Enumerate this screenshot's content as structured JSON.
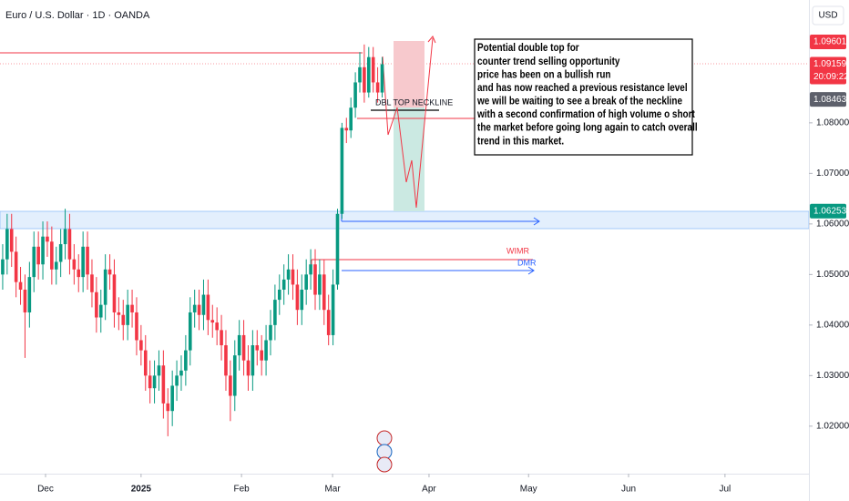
{
  "chart_data": {
    "type": "candlestick",
    "title": "Euro / U.S. Dollar · 1D · OANDA",
    "currency": "USD",
    "up_color": "#089981",
    "down_color": "#f23645",
    "open": [
      1.05,
      1.053,
      1.059,
      1.0545,
      1.0485,
      1.047,
      1.0425,
      1.0495,
      1.0555,
      1.052,
      1.0575,
      1.0565,
      1.051,
      1.0525,
      1.056,
      1.059,
      1.053,
      1.051,
      1.0495,
      1.0555,
      1.05,
      1.0465,
      1.0415,
      1.044,
      1.051,
      1.05,
      1.0425,
      1.042,
      1.04,
      1.044,
      1.0425,
      1.037,
      1.035,
      1.03,
      1.0275,
      1.03,
      1.032,
      1.0245,
      1.023,
      1.028,
      1.03,
      1.031,
      1.035,
      1.0425,
      1.044,
      1.042,
      1.046,
      1.041,
      1.0405,
      1.039,
      1.036,
      1.03,
      1.026,
      1.034,
      1.038,
      1.033,
      1.03,
      1.036,
      1.035,
      1.033,
      1.037,
      1.04,
      1.045,
      1.047,
      1.049,
      1.051,
      1.048,
      1.043,
      1.047,
      1.05,
      1.052,
      1.046,
      1.05,
      1.043,
      1.038,
      1.048,
      1.062,
      1.079,
      1.0785,
      1.083,
      1.088,
      1.091,
      1.086,
      1.093,
      1.088,
      1.086
    ],
    "high": [
      1.056,
      1.062,
      1.062,
      1.0575,
      1.0515,
      1.05,
      1.0525,
      1.0585,
      1.0585,
      1.0605,
      1.0605,
      1.0595,
      1.0555,
      1.059,
      1.063,
      1.062,
      1.056,
      1.054,
      1.0585,
      1.0585,
      1.053,
      1.0495,
      1.047,
      1.054,
      1.054,
      1.053,
      1.0455,
      1.045,
      1.047,
      1.047,
      1.0455,
      1.04,
      1.038,
      1.033,
      1.033,
      1.035,
      1.035,
      1.0275,
      1.031,
      1.033,
      1.034,
      1.038,
      1.0455,
      1.047,
      1.047,
      1.049,
      1.049,
      1.044,
      1.0435,
      1.042,
      1.039,
      1.033,
      1.037,
      1.041,
      1.041,
      1.036,
      1.039,
      1.039,
      1.038,
      1.04,
      1.043,
      1.048,
      1.05,
      1.052,
      1.054,
      1.054,
      1.051,
      1.05,
      1.053,
      1.055,
      1.055,
      1.053,
      1.053,
      1.046,
      1.051,
      1.063,
      1.08,
      1.081,
      1.085,
      1.09,
      1.094,
      1.0955,
      1.095,
      1.095,
      1.091,
      1.093
    ],
    "low": [
      1.047,
      1.05,
      1.0515,
      1.0455,
      1.044,
      1.0335,
      1.0395,
      1.0465,
      1.049,
      1.049,
      1.0535,
      1.048,
      1.048,
      1.0495,
      1.053,
      1.05,
      1.048,
      1.0465,
      1.0465,
      1.047,
      1.0435,
      1.0385,
      1.0385,
      1.041,
      1.047,
      1.0395,
      1.039,
      1.037,
      1.037,
      1.0395,
      1.034,
      1.032,
      1.027,
      1.0245,
      1.0245,
      1.027,
      1.0215,
      1.018,
      1.02,
      1.025,
      1.027,
      1.028,
      1.032,
      1.0395,
      1.039,
      1.039,
      1.038,
      1.0375,
      1.036,
      1.033,
      1.027,
      1.021,
      1.023,
      1.031,
      1.03,
      1.027,
      1.027,
      1.032,
      1.03,
      1.03,
      1.034,
      1.037,
      1.042,
      1.044,
      1.046,
      1.045,
      1.04,
      1.04,
      1.044,
      1.047,
      1.043,
      1.043,
      1.04,
      1.036,
      1.036,
      1.047,
      1.061,
      1.076,
      1.077,
      1.081,
      1.086,
      1.084,
      1.085,
      1.086,
      1.084,
      1.085
    ],
    "close": [
      1.053,
      1.059,
      1.0545,
      1.0485,
      1.047,
      1.0425,
      1.0495,
      1.0555,
      1.052,
      1.0575,
      1.0565,
      1.051,
      1.0525,
      1.056,
      1.059,
      1.053,
      1.051,
      1.0495,
      1.0555,
      1.05,
      1.0465,
      1.0415,
      1.044,
      1.051,
      1.05,
      1.0425,
      1.042,
      1.04,
      1.044,
      1.0425,
      1.037,
      1.035,
      1.03,
      1.0275,
      1.03,
      1.032,
      1.0245,
      1.023,
      1.028,
      1.03,
      1.031,
      1.035,
      1.0425,
      1.044,
      1.042,
      1.046,
      1.041,
      1.0405,
      1.039,
      1.036,
      1.03,
      1.026,
      1.034,
      1.038,
      1.033,
      1.03,
      1.036,
      1.035,
      1.033,
      1.037,
      1.04,
      1.045,
      1.047,
      1.049,
      1.051,
      1.048,
      1.043,
      1.047,
      1.05,
      1.052,
      1.046,
      1.05,
      1.043,
      1.038,
      1.048,
      1.062,
      1.079,
      1.0785,
      1.083,
      1.088,
      1.091,
      1.086,
      1.093,
      1.088,
      1.086,
      1.0916
    ],
    "xlim": [
      -0.6,
      180.6
    ],
    "xticks": [
      {
        "value": 9.6,
        "label": "Dec"
      },
      {
        "value": 31.0,
        "label": "2025"
      },
      {
        "value": 53.5,
        "label": "Feb"
      },
      {
        "value": 73.9,
        "label": "Mar"
      },
      {
        "value": 95.5,
        "label": "Apr"
      },
      {
        "value": 117.8,
        "label": "May"
      },
      {
        "value": 140.2,
        "label": "Jun"
      },
      {
        "value": 161.8,
        "label": "Jul"
      }
    ],
    "ylim": [
      1.0106,
      1.1043
    ],
    "yticks": [
      {
        "value": 1.02,
        "label": "1.02000"
      },
      {
        "value": 1.03,
        "label": "1.03000"
      },
      {
        "value": 1.04,
        "label": "1.04000"
      },
      {
        "value": 1.05,
        "label": "1.05000"
      },
      {
        "value": 1.06,
        "label": "1.06000"
      },
      {
        "value": 1.07,
        "label": "1.07000"
      },
      {
        "value": 1.08,
        "label": "1.08000"
      }
    ],
    "price_labels": [
      {
        "value": 1.09601,
        "color": "#f23645"
      },
      {
        "value": 1.09159,
        "color": "#f23645",
        "countdown": "20:09:22"
      },
      {
        "value": 1.08463,
        "color": "#5d606b"
      },
      {
        "value": 1.06253,
        "color": "#089981"
      }
    ],
    "annotations": {
      "neckline": "DBL TOP NECKLINE",
      "wimr": "WIMR",
      "dmr": "DMR"
    },
    "note": [
      "Potential double top for",
      "counter trend selling opportunity",
      "price has been on a bullish run",
      "and has now reached a previous resistance level",
      "we will be waiting to see a break of the neckline",
      "with a second confirmation of high volume o short",
      "the market before going long again to catch overall",
      "trend in this market."
    ]
  }
}
